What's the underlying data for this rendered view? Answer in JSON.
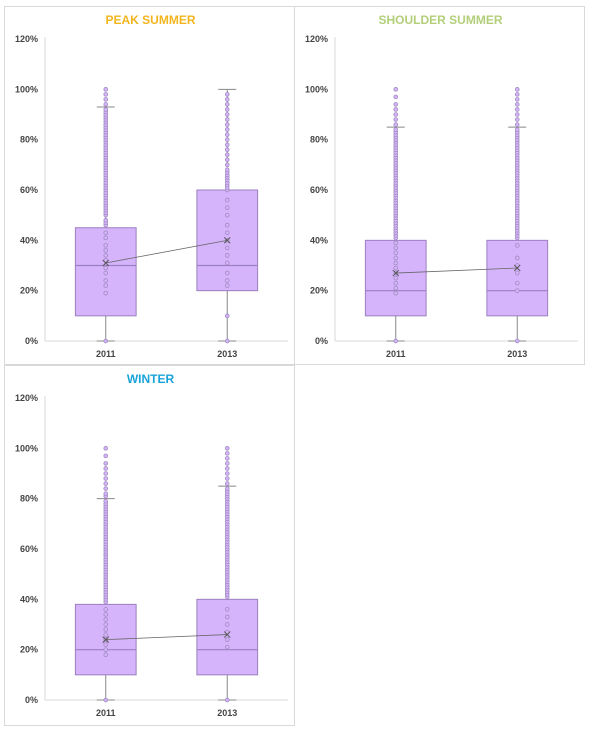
{
  "colors": {
    "box_fill": "#d6b4fc",
    "box_stroke": "#9b7fbf",
    "outlier": "#a08bc0",
    "whisker": "#888888",
    "axis": "#d9d9d9",
    "text": "#444444"
  },
  "chart_data": [
    {
      "type": "box",
      "title": "PEAK SUMMER",
      "title_color": "#f2b51e",
      "categories": [
        "2011",
        "2013"
      ],
      "ylim": [
        0,
        120
      ],
      "yticks": [
        0,
        20,
        40,
        60,
        80,
        100,
        120
      ],
      "ytick_labels": [
        "0%",
        "20%",
        "40%",
        "60%",
        "80%",
        "100%",
        "120%"
      ],
      "boxes": [
        {
          "category": "2011",
          "min": 0,
          "q1": 10,
          "median": 30,
          "q3": 45,
          "max": 93,
          "mean": 31,
          "outliers": [
            19,
            22,
            24,
            27,
            29,
            32,
            34,
            36,
            38,
            41,
            43,
            46,
            47,
            48,
            50,
            51,
            52,
            53,
            54,
            55,
            56,
            57,
            58,
            59,
            60,
            61,
            62,
            63,
            64,
            65,
            66,
            67,
            68,
            69,
            70,
            71,
            72,
            73,
            74,
            75,
            76,
            77,
            78,
            79,
            80,
            81,
            82,
            83,
            84,
            85,
            86,
            87,
            88,
            89,
            90,
            91,
            92,
            94,
            96,
            98,
            100
          ]
        },
        {
          "category": "2013",
          "min": 0,
          "q1": 20,
          "median": 30,
          "q3": 60,
          "max": 100,
          "mean": 40,
          "outliers": [
            10,
            22,
            24,
            27,
            31,
            34,
            37,
            40,
            43,
            46,
            50,
            53,
            56,
            60,
            61,
            62,
            63,
            64,
            65,
            66,
            67,
            68,
            70,
            72,
            74,
            76,
            78,
            80,
            82,
            84,
            86,
            88,
            90,
            92,
            94,
            96,
            98
          ]
        }
      ]
    },
    {
      "type": "box",
      "title": "SHOULDER SUMMER",
      "title_color": "#b3cf7a",
      "categories": [
        "2011",
        "2013"
      ],
      "ylim": [
        0,
        120
      ],
      "yticks": [
        0,
        20,
        40,
        60,
        80,
        100,
        120
      ],
      "ytick_labels": [
        "0%",
        "20%",
        "40%",
        "60%",
        "80%",
        "100%",
        "120%"
      ],
      "boxes": [
        {
          "category": "2011",
          "min": 0,
          "q1": 10,
          "median": 20,
          "q3": 40,
          "max": 85,
          "mean": 27,
          "outliers": [
            19,
            21,
            23,
            25,
            27,
            29,
            31,
            33,
            35,
            37,
            39,
            41,
            42,
            43,
            44,
            45,
            46,
            47,
            48,
            49,
            50,
            51,
            52,
            53,
            54,
            55,
            56,
            57,
            58,
            59,
            60,
            61,
            62,
            63,
            64,
            65,
            66,
            67,
            68,
            69,
            70,
            71,
            72,
            73,
            74,
            75,
            76,
            77,
            78,
            79,
            80,
            81,
            82,
            83,
            84,
            86,
            88,
            90,
            92,
            94,
            97,
            100
          ]
        },
        {
          "category": "2013",
          "min": 0,
          "q1": 10,
          "median": 20,
          "q3": 40,
          "max": 85,
          "mean": 29,
          "outliers": [
            20,
            23,
            27,
            30,
            33,
            38,
            41,
            42,
            43,
            44,
            45,
            46,
            47,
            48,
            49,
            50,
            51,
            52,
            53,
            54,
            55,
            56,
            57,
            58,
            59,
            60,
            61,
            62,
            63,
            64,
            65,
            66,
            67,
            68,
            69,
            70,
            71,
            72,
            73,
            74,
            75,
            76,
            77,
            78,
            79,
            80,
            81,
            82,
            83,
            84,
            86,
            88,
            90,
            92,
            94,
            96,
            98,
            100
          ]
        }
      ]
    },
    {
      "type": "box",
      "title": "WINTER",
      "title_color": "#1aa3d9",
      "categories": [
        "2011",
        "2013"
      ],
      "ylim": [
        0,
        120
      ],
      "yticks": [
        0,
        20,
        40,
        60,
        80,
        100,
        120
      ],
      "ytick_labels": [
        "0%",
        "20%",
        "40%",
        "60%",
        "80%",
        "100%",
        "120%"
      ],
      "boxes": [
        {
          "category": "2011",
          "min": 0,
          "q1": 10,
          "median": 20,
          "q3": 38,
          "max": 80,
          "mean": 24,
          "outliers": [
            18,
            20,
            22,
            24,
            26,
            28,
            30,
            32,
            34,
            36,
            39,
            40,
            41,
            42,
            43,
            44,
            45,
            46,
            47,
            48,
            49,
            50,
            51,
            52,
            53,
            54,
            55,
            56,
            57,
            58,
            59,
            60,
            61,
            62,
            63,
            64,
            65,
            66,
            67,
            68,
            69,
            70,
            71,
            72,
            73,
            74,
            75,
            76,
            77,
            78,
            79,
            81,
            82,
            84,
            86,
            88,
            90,
            92,
            94,
            97,
            100
          ]
        },
        {
          "category": "2013",
          "min": 0,
          "q1": 10,
          "median": 20,
          "q3": 40,
          "max": 85,
          "mean": 26,
          "outliers": [
            21,
            24,
            27,
            30,
            33,
            36,
            41,
            42,
            43,
            44,
            45,
            46,
            47,
            48,
            49,
            50,
            51,
            52,
            53,
            54,
            55,
            56,
            57,
            58,
            59,
            60,
            61,
            62,
            63,
            64,
            65,
            66,
            67,
            68,
            69,
            70,
            71,
            72,
            73,
            74,
            75,
            76,
            77,
            78,
            79,
            80,
            81,
            82,
            83,
            84,
            86,
            88,
            90,
            92,
            94,
            96,
            98,
            100
          ]
        }
      ]
    }
  ]
}
